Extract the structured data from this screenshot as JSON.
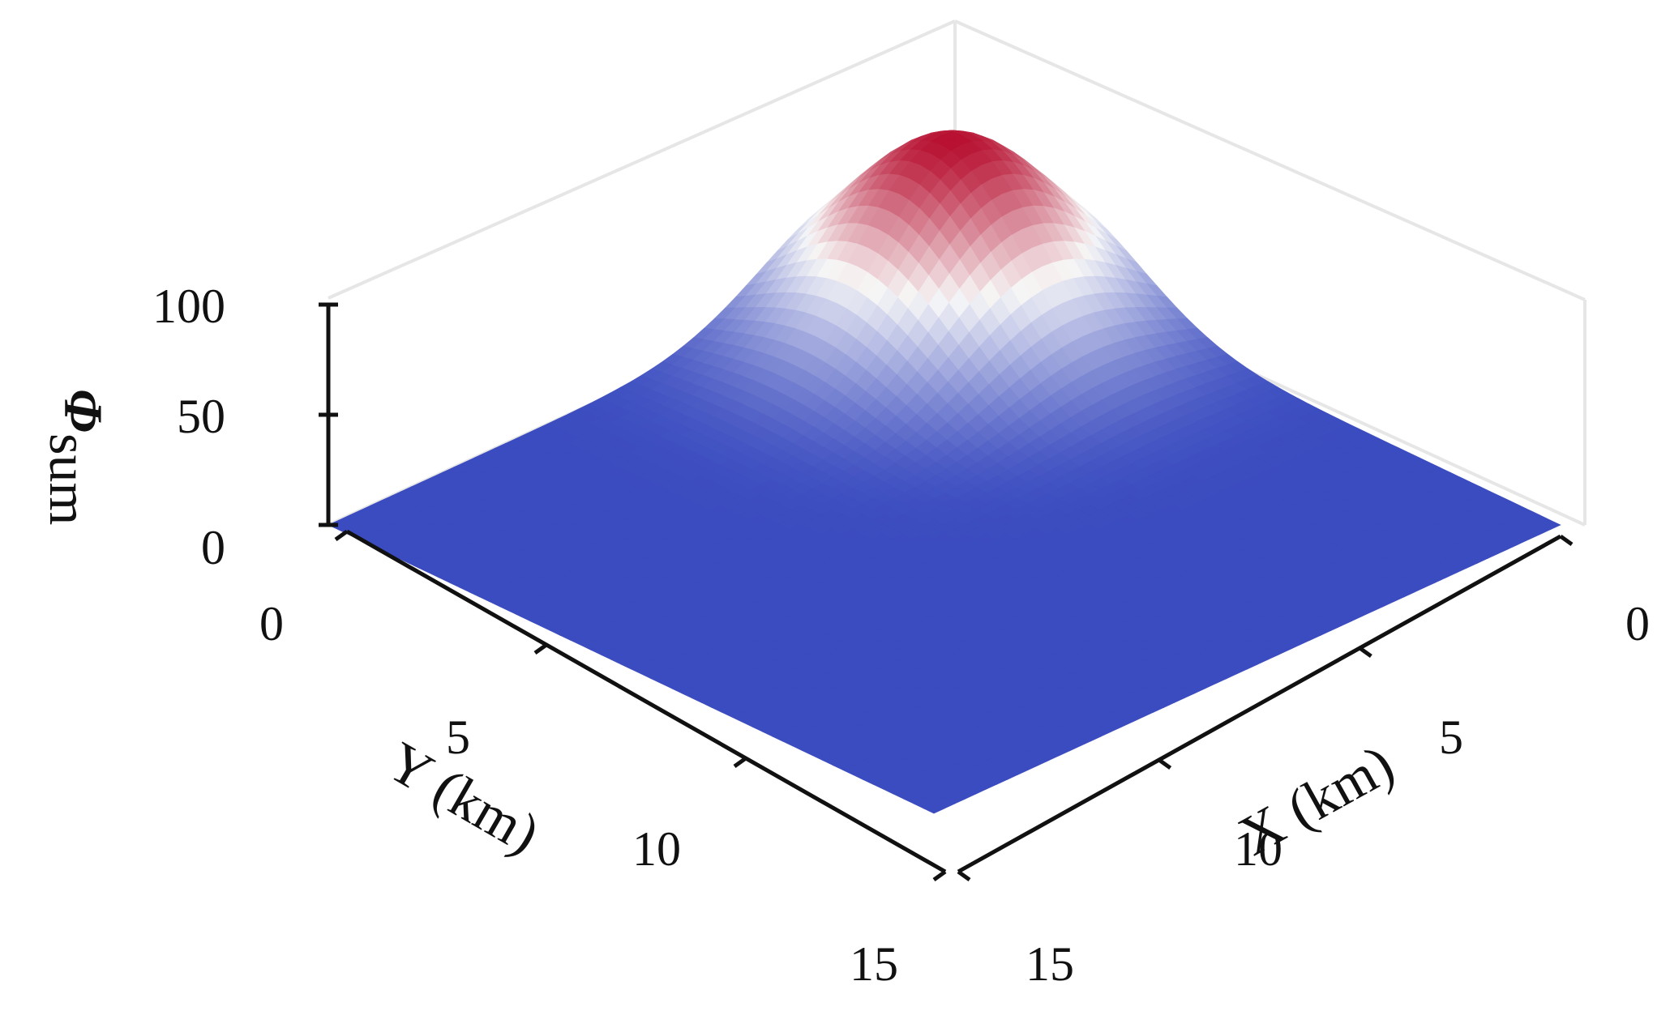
{
  "chart_data": {
    "type": "surface3d",
    "title": "",
    "xlabel": "X (km)",
    "ylabel": "Y (km)",
    "zlabel_main": "Φ",
    "zlabel_sub": "sum",
    "x_ticks": [
      "0",
      "5",
      "10",
      "15"
    ],
    "y_ticks": [
      "0",
      "5",
      "10",
      "15"
    ],
    "z_ticks": [
      "0",
      "50",
      "100"
    ],
    "xlim": [
      0,
      15
    ],
    "ylim": [
      0,
      15
    ],
    "zlim": [
      0,
      100
    ],
    "colormap": "coolwarm",
    "colormap_colors": [
      "#3b4cc0",
      "#f7f7f7",
      "#b40426"
    ],
    "grid": false,
    "peak": {
      "x": 2.5,
      "y": 2.5,
      "z": 88
    },
    "surface_samples": [
      {
        "x": 0,
        "y": 0,
        "z": 48
      },
      {
        "x": 2.5,
        "y": 2.5,
        "z": 88
      },
      {
        "x": 5,
        "y": 5,
        "z": 32
      },
      {
        "x": 7.5,
        "y": 7.5,
        "z": 4
      },
      {
        "x": 15,
        "y": 15,
        "z": 0
      },
      {
        "x": 0,
        "y": 15,
        "z": 0
      },
      {
        "x": 15,
        "y": 0,
        "z": 0
      }
    ]
  }
}
